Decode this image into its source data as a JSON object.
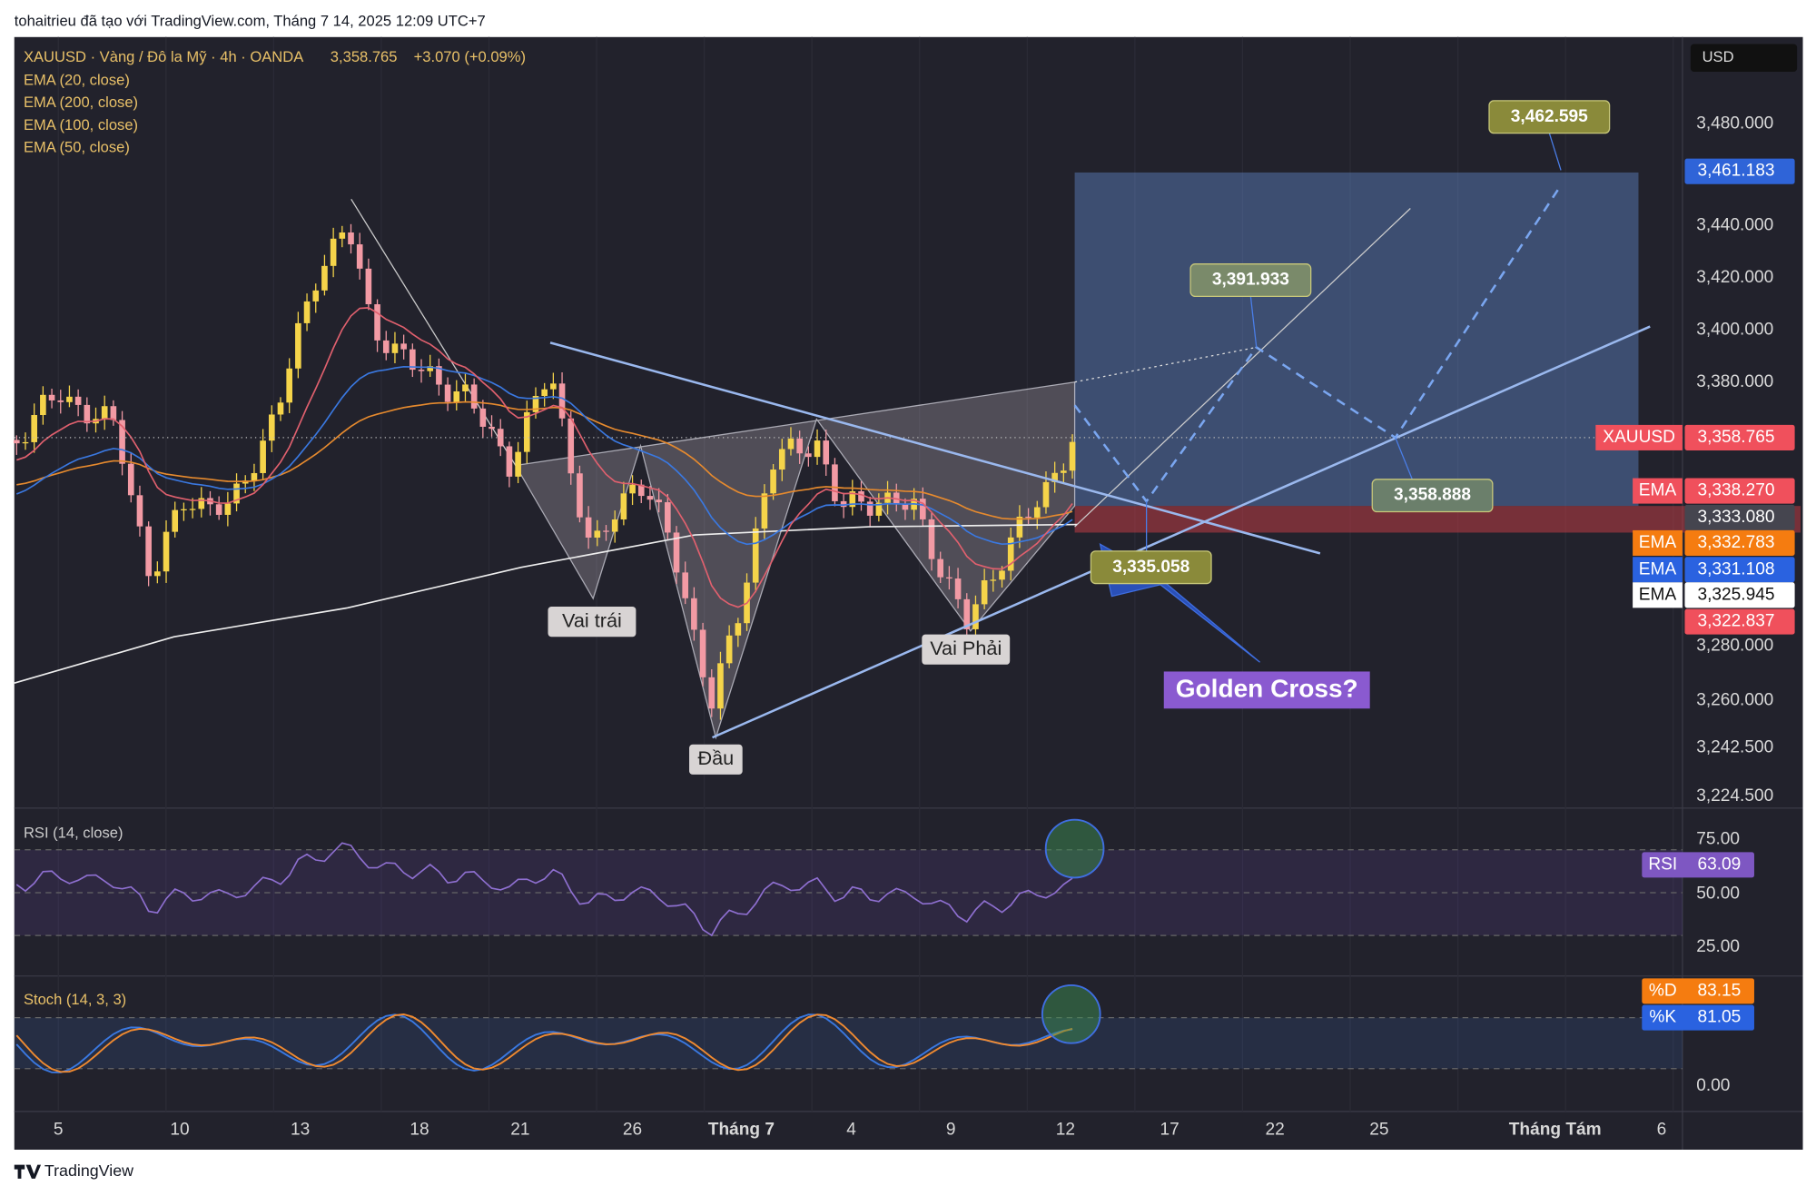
{
  "header": {
    "credit": "tohaitrieu đã tạo với TradingView.com, Tháng 7 14, 2025 12:09 UTC+7"
  },
  "legend": {
    "symbol": "XAUUSD · Vàng / Đô la Mỹ · 4h · OANDA",
    "price": "3,358.765",
    "change": "+3.070 (+0.09%)",
    "indicators": [
      "EMA (20, close)",
      "EMA (200, close)",
      "EMA (100, close)",
      "EMA (50, close)"
    ]
  },
  "price_axis": {
    "currency": "USD",
    "labels": [
      "3,480.000",
      "3,440.000",
      "3,420.000",
      "3,400.000",
      "3,380.000",
      "3,280.000",
      "3,260.000",
      "3,242.500",
      "3,224.500"
    ]
  },
  "badges": [
    {
      "value": "3,461.183"
    },
    {
      "tag": "XAUUSD",
      "value": "3,358.765"
    },
    {
      "tag": "EMA",
      "value": "3,338.270"
    },
    {
      "value": "3,333.080"
    },
    {
      "tag": "EMA",
      "value": "3,332.783"
    },
    {
      "tag": "EMA",
      "value": "3,331.108"
    },
    {
      "tag": "EMA",
      "value": "3,325.945"
    },
    {
      "value": "3,322.837"
    }
  ],
  "annotations": {
    "targets": [
      "3,462.595",
      "3,391.933",
      "3,358.888",
      "3,335.058"
    ],
    "pattern": [
      "Vai trái",
      "Đầu",
      "Vai Phải"
    ],
    "note": "Golden Cross?"
  },
  "rsi": {
    "title": "RSI (14, close)",
    "labels": [
      "75.00",
      "50.00",
      "25.00"
    ],
    "badge_tag": "RSI",
    "badge_value": "63.09"
  },
  "stoch": {
    "title": "Stoch (14, 3, 3)",
    "d_tag": "%D",
    "d_value": "83.15",
    "k_tag": "%K",
    "k_value": "81.05",
    "labels": [
      "0.00"
    ]
  },
  "time_axis": {
    "labels": [
      "5",
      "10",
      "13",
      "18",
      "21",
      "26",
      "Tháng 7",
      "4",
      "9",
      "12",
      "17",
      "22",
      "25",
      "Tháng Tám",
      "6"
    ]
  },
  "footer": {
    "brand": "TradingView"
  }
}
